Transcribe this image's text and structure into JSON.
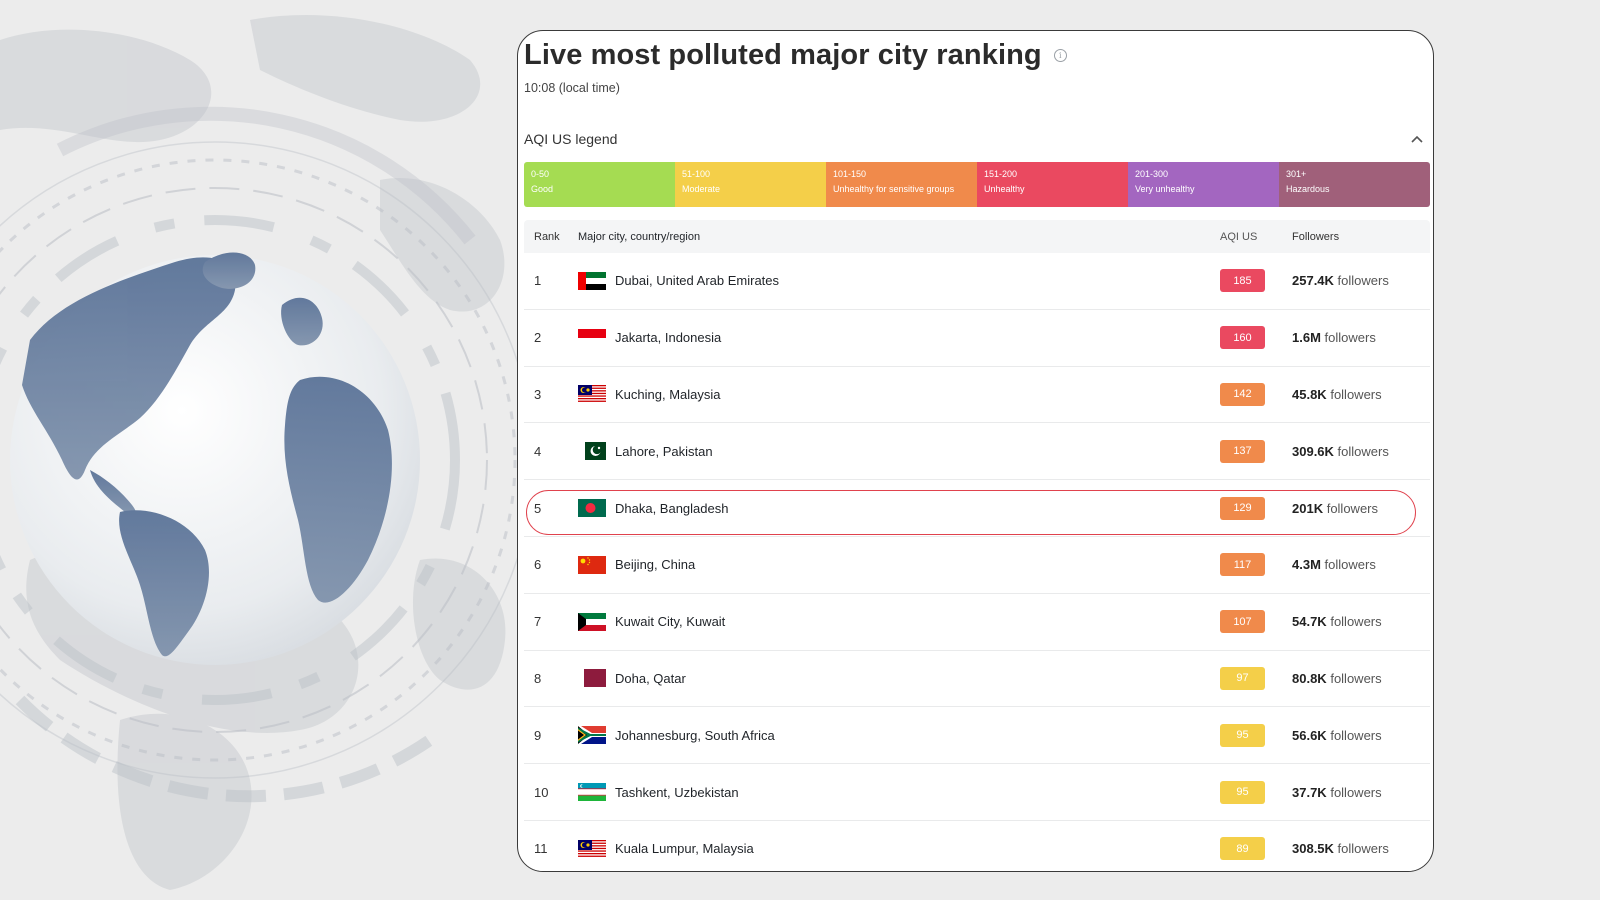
{
  "page": {
    "title": "Live most polluted major city ranking",
    "local_time": "10:08 (local time)"
  },
  "legend": {
    "title": "AQI US legend",
    "segments": [
      {
        "range": "0-50",
        "label": "Good",
        "color": "#a5dc52"
      },
      {
        "range": "51-100",
        "label": "Moderate",
        "color": "#f4cf49"
      },
      {
        "range": "101-150",
        "label": "Unhealthy for sensitive groups",
        "color": "#f08a4b"
      },
      {
        "range": "151-200",
        "label": "Unhealthy",
        "color": "#ea4960"
      },
      {
        "range": "201-300",
        "label": "Very unhealthy",
        "color": "#a366c0"
      },
      {
        "range": "301+",
        "label": "Hazardous",
        "color": "#a0607a"
      }
    ]
  },
  "table": {
    "headers": {
      "rank": "Rank",
      "city": "Major city, country/region",
      "aqi": "AQI US",
      "followers": "Followers"
    },
    "followers_word": "followers",
    "rows": [
      {
        "rank": "1",
        "city": "Dubai, United Arab Emirates",
        "aqi": "185",
        "followers": "257.4K",
        "flag": "uae-flag-icon",
        "aqi_color": "#ea4960"
      },
      {
        "rank": "2",
        "city": "Jakarta, Indonesia",
        "aqi": "160",
        "followers": "1.6M",
        "flag": "indonesia-flag-icon",
        "aqi_color": "#ea4960"
      },
      {
        "rank": "3",
        "city": "Kuching, Malaysia",
        "aqi": "142",
        "followers": "45.8K",
        "flag": "malaysia-flag-icon",
        "aqi_color": "#f08a4b"
      },
      {
        "rank": "4",
        "city": "Lahore, Pakistan",
        "aqi": "137",
        "followers": "309.6K",
        "flag": "pakistan-flag-icon",
        "aqi_color": "#f08a4b"
      },
      {
        "rank": "5",
        "city": "Dhaka, Bangladesh",
        "aqi": "129",
        "followers": "201K",
        "flag": "bangladesh-flag-icon",
        "aqi_color": "#f08a4b"
      },
      {
        "rank": "6",
        "city": "Beijing, China",
        "aqi": "117",
        "followers": "4.3M",
        "flag": "china-flag-icon",
        "aqi_color": "#f08a4b"
      },
      {
        "rank": "7",
        "city": "Kuwait City, Kuwait",
        "aqi": "107",
        "followers": "54.7K",
        "flag": "kuwait-flag-icon",
        "aqi_color": "#f08a4b"
      },
      {
        "rank": "8",
        "city": "Doha, Qatar",
        "aqi": "97",
        "followers": "80.8K",
        "flag": "qatar-flag-icon",
        "aqi_color": "#f4cf49"
      },
      {
        "rank": "9",
        "city": "Johannesburg, South Africa",
        "aqi": "95",
        "followers": "56.6K",
        "flag": "south-africa-flag-icon",
        "aqi_color": "#f4cf49"
      },
      {
        "rank": "10",
        "city": "Tashkent, Uzbekistan",
        "aqi": "95",
        "followers": "37.7K",
        "flag": "uzbekistan-flag-icon",
        "aqi_color": "#f4cf49"
      },
      {
        "rank": "11",
        "city": "Kuala Lumpur, Malaysia",
        "aqi": "89",
        "followers": "308.5K",
        "flag": "malaysia-flag-icon",
        "aqi_color": "#f4cf49"
      }
    ]
  }
}
